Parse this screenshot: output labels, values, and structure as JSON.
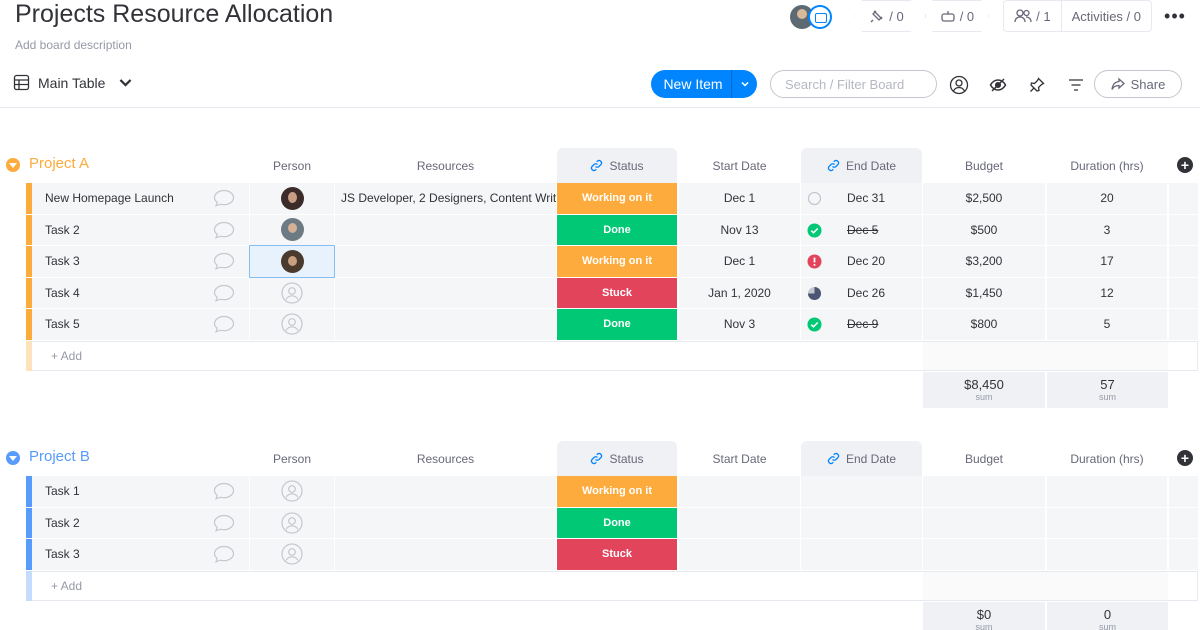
{
  "board": {
    "title": "Projects Resource Allocation",
    "description_placeholder": "Add board description"
  },
  "header": {
    "integrations_count": "/ 0",
    "automations_count": "/ 0",
    "members_count": "/ 1",
    "activities_label": "Activities / 0"
  },
  "toolbar": {
    "view_label": "Main Table",
    "new_item_label": "New Item",
    "search_placeholder": "Search / Filter Board",
    "share_label": "Share"
  },
  "columns": {
    "person": "Person",
    "resources": "Resources",
    "status": "Status",
    "start_date": "Start Date",
    "end_date": "End Date",
    "budget": "Budget",
    "duration": "Duration (hrs)"
  },
  "colors": {
    "orange": "#fdab3d",
    "green": "#00c875",
    "red": "#e2445c",
    "blue": "#579bfc",
    "primary": "#0085ff"
  },
  "groups": [
    {
      "title": "Project A",
      "color": "#fdab3d",
      "add_label": "+ Add",
      "rows": [
        {
          "name": "New Homepage Launch",
          "person": "avatar-1",
          "resources": "JS Developer, 2 Designers, Content Writ...",
          "status": "Working on it",
          "status_color": "#fdab3d",
          "start": "Dec 1",
          "end_icon": "empty-circle",
          "end": "Dec 31",
          "end_strike": false,
          "budget": "$2,500",
          "duration": "20"
        },
        {
          "name": "Task 2",
          "person": "avatar-2",
          "resources": "",
          "status": "Done",
          "status_color": "#00c875",
          "start": "Nov 13",
          "end_icon": "check",
          "end": "Dec 5",
          "end_strike": true,
          "budget": "$500",
          "duration": "3"
        },
        {
          "name": "Task 3",
          "person": "avatar-3",
          "resources": "",
          "status": "Working on it",
          "status_color": "#fdab3d",
          "start": "Dec 1",
          "end_icon": "alert",
          "end": "Dec 20",
          "end_strike": false,
          "budget": "$3,200",
          "duration": "17"
        },
        {
          "name": "Task 4",
          "person": "",
          "resources": "",
          "status": "Stuck",
          "status_color": "#e2445c",
          "start": "Jan 1, 2020",
          "end_icon": "pie",
          "end": "Dec 26",
          "end_strike": false,
          "budget": "$1,450",
          "duration": "12"
        },
        {
          "name": "Task 5",
          "person": "",
          "resources": "",
          "status": "Done",
          "status_color": "#00c875",
          "start": "Nov 3",
          "end_icon": "check",
          "end": "Dec 9",
          "end_strike": true,
          "budget": "$800",
          "duration": "5"
        }
      ],
      "sum_budget": "$8,450",
      "sum_duration": "57",
      "sum_label": "sum"
    },
    {
      "title": "Project B",
      "color": "#579bfc",
      "add_label": "+ Add",
      "rows": [
        {
          "name": "Task 1",
          "person": "",
          "resources": "",
          "status": "Working on it",
          "status_color": "#fdab3d",
          "start": "",
          "end_icon": "",
          "end": "",
          "end_strike": false,
          "budget": "",
          "duration": ""
        },
        {
          "name": "Task 2",
          "person": "",
          "resources": "",
          "status": "Done",
          "status_color": "#00c875",
          "start": "",
          "end_icon": "",
          "end": "",
          "end_strike": false,
          "budget": "",
          "duration": ""
        },
        {
          "name": "Task 3",
          "person": "",
          "resources": "",
          "status": "Stuck",
          "status_color": "#e2445c",
          "start": "",
          "end_icon": "",
          "end": "",
          "end_strike": false,
          "budget": "",
          "duration": ""
        }
      ],
      "sum_budget": "$0",
      "sum_duration": "0",
      "sum_label": "sum"
    }
  ]
}
